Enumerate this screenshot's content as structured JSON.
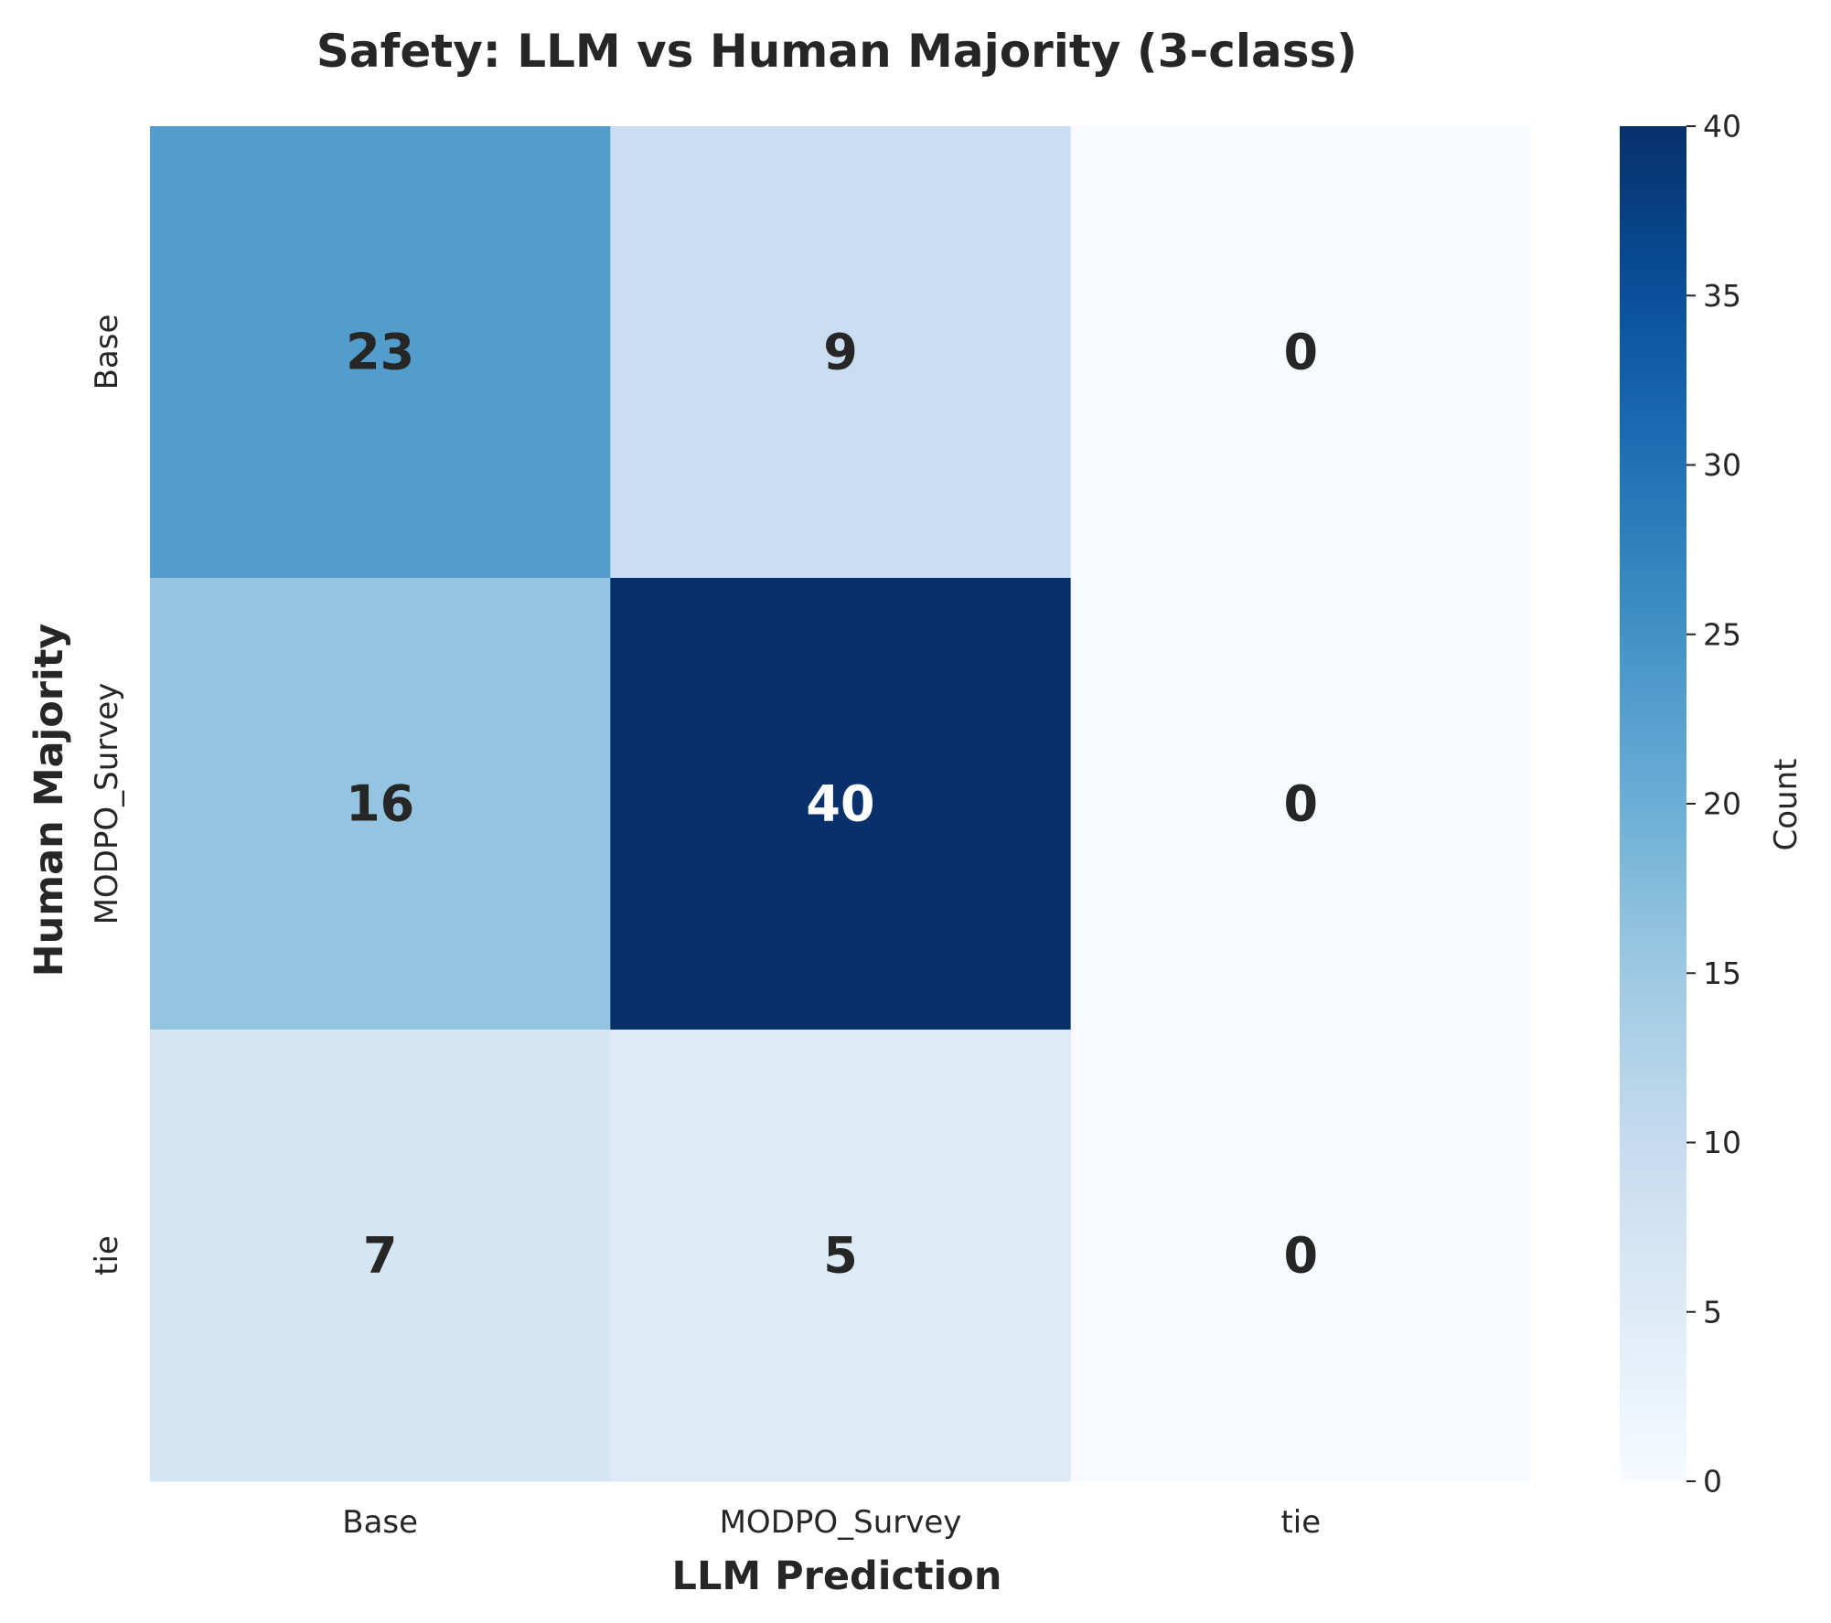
{
  "chart_data": {
    "type": "heatmap",
    "title": "Safety: LLM vs Human Majority (3-class)",
    "xlabel": "LLM Prediction",
    "ylabel": "Human Majority",
    "x_categories": [
      "Base",
      "MODPO_Survey",
      "tie"
    ],
    "y_categories": [
      "Base",
      "MODPO_Survey",
      "tie"
    ],
    "values": [
      [
        23,
        9,
        0
      ],
      [
        16,
        40,
        0
      ],
      [
        7,
        5,
        0
      ]
    ],
    "colorbar": {
      "label": "Count",
      "range": [
        0,
        40
      ],
      "ticks": [
        0,
        5,
        10,
        15,
        20,
        25,
        30,
        35,
        40
      ],
      "colormap": "Blues"
    }
  }
}
